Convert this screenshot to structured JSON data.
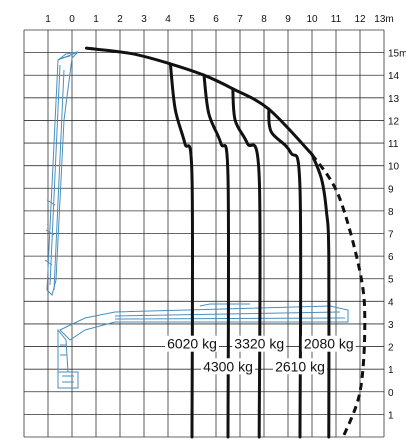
{
  "chart_data": {
    "type": "line",
    "title": "",
    "xlabel": "",
    "ylabel": "",
    "x_ticks": [
      "1",
      "0",
      "1",
      "2",
      "3",
      "4",
      "5",
      "6",
      "7",
      "8",
      "9",
      "10",
      "11",
      "12",
      "13m"
    ],
    "x_tick_values": [
      -1,
      0,
      1,
      2,
      3,
      4,
      5,
      6,
      7,
      8,
      9,
      10,
      11,
      12,
      13
    ],
    "y_ticks": [
      "15m",
      "14",
      "13",
      "12",
      "11",
      "10",
      "9",
      "8",
      "7",
      "6",
      "5",
      "4",
      "3",
      "2",
      "1",
      "0",
      "1"
    ],
    "y_tick_values": [
      15,
      14,
      13,
      12,
      11,
      10,
      9,
      8,
      7,
      6,
      5,
      4,
      3,
      2,
      1,
      0,
      -1
    ],
    "xlim": [
      -2,
      13
    ],
    "ylim": [
      -2,
      16
    ],
    "grid": true,
    "color": "#111111",
    "envelope": [
      [
        0.6,
        15.2
      ],
      [
        2.5,
        14.95
      ],
      [
        4.1,
        14.5
      ],
      [
        5.5,
        14.0
      ],
      [
        6.7,
        13.4
      ],
      [
        8.2,
        12.5
      ],
      [
        10.0,
        10.5
      ]
    ],
    "envelope_dashed": [
      [
        10.0,
        10.5
      ],
      [
        11.1,
        8.7
      ],
      [
        12.0,
        5.3
      ],
      [
        12.2,
        3.0
      ],
      [
        12.0,
        0.0
      ],
      [
        11.3,
        -2.0
      ]
    ],
    "series": [
      {
        "name": "6020 kg",
        "points": [
          [
            4.1,
            14.5
          ],
          [
            4.3,
            12.5
          ],
          [
            4.7,
            11.0
          ],
          [
            5.0,
            9.5
          ],
          [
            5.0,
            -2.0
          ]
        ]
      },
      {
        "name": "4300 kg",
        "points": [
          [
            5.5,
            14.0
          ],
          [
            5.7,
            12.3
          ],
          [
            6.2,
            11.0
          ],
          [
            6.5,
            9.5
          ],
          [
            6.5,
            -2.0
          ]
        ]
      },
      {
        "name": "3320 kg",
        "points": [
          [
            6.7,
            13.4
          ],
          [
            6.8,
            12.0
          ],
          [
            7.3,
            11.0
          ],
          [
            7.8,
            9.5
          ],
          [
            7.8,
            -2.0
          ]
        ]
      },
      {
        "name": "2610 kg",
        "points": [
          [
            8.2,
            12.5
          ],
          [
            8.3,
            11.5
          ],
          [
            9.1,
            10.6
          ],
          [
            9.5,
            9.0
          ],
          [
            9.5,
            -2.0
          ]
        ]
      },
      {
        "name": "2080 kg",
        "points": [
          [
            10.0,
            10.5
          ],
          [
            10.4,
            9.4
          ],
          [
            10.6,
            8.0
          ],
          [
            10.7,
            6.0
          ],
          [
            10.7,
            -2.0
          ]
        ]
      }
    ],
    "legend": "none"
  }
}
